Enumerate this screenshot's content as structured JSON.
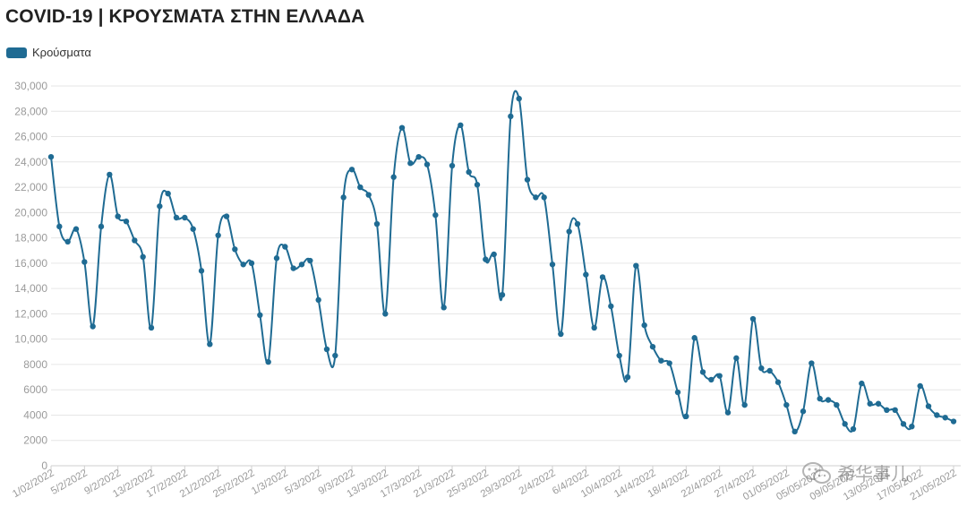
{
  "title": "COVID-19 | ΚΡΟΥΣΜΑΤΑ ΣΤΗΝ ΕΛΛΑΔΑ",
  "legend": {
    "label": "Κρούσματα",
    "color": "#1f6b93"
  },
  "watermark": {
    "text": "希华事儿",
    "icon": "wechat-icon"
  },
  "chart_data": {
    "type": "line",
    "title": "COVID-19 | ΚΡΟΥΣΜΑΤΑ ΣΤΗΝ ΕΛΛΑΔΑ",
    "xlabel": "",
    "ylabel": "",
    "ylim": [
      0,
      30000
    ],
    "yticks": [
      0,
      2000,
      4000,
      6000,
      8000,
      10000,
      12000,
      14000,
      16000,
      18000,
      20000,
      22000,
      24000,
      26000,
      28000,
      30000
    ],
    "ytick_labels": [
      "0",
      "2000",
      "4000",
      "6000",
      "8000",
      "10,000",
      "12,000",
      "14,000",
      "16,000",
      "18,000",
      "20,000",
      "22,000",
      "24,000",
      "26,000",
      "28,000",
      "30,000"
    ],
    "xtick_labels": [
      "1/02/2022",
      "5/2/2022",
      "9/2/2022",
      "13/2/2022",
      "17/2/2022",
      "21/2/2022",
      "25/2/2022",
      "1/3/2022",
      "5/3/2022",
      "9/3/2022",
      "13/3/2022",
      "17/3/2022",
      "21/3/2022",
      "25/3/2022",
      "29/3/2022",
      "2/4/2022",
      "6/4/2022",
      "10/4/2022",
      "14/4/2022",
      "18/4/2022",
      "22/4/2022",
      "27/4/2022",
      "01/05/2022",
      "05/05/2022",
      "09/05/2022",
      "13/05/2022",
      "17/05/2022",
      "21/05/2022"
    ],
    "grid": true,
    "legend_position": "top-left",
    "series": [
      {
        "name": "Κρούσματα",
        "color": "#1f6b93",
        "values": [
          24400,
          18900,
          17700,
          18700,
          16100,
          11000,
          18900,
          23000,
          19700,
          19300,
          17800,
          16500,
          10900,
          20500,
          21500,
          19600,
          19600,
          18700,
          15400,
          9600,
          18200,
          19700,
          17100,
          15900,
          16000,
          11900,
          8200,
          16400,
          17300,
          15600,
          15900,
          16200,
          13100,
          9200,
          8700,
          21200,
          23400,
          22000,
          21400,
          19100,
          12000,
          22800,
          26700,
          23900,
          24400,
          23800,
          19800,
          12500,
          23700,
          26900,
          23200,
          22200,
          16300,
          16700,
          13500,
          27600,
          29000,
          22600,
          21200,
          21200,
          15900,
          10400,
          18500,
          19100,
          15100,
          10900,
          14900,
          12600,
          8700,
          7000,
          15800,
          11100,
          9400,
          8300,
          8100,
          5800,
          3900,
          10100,
          7400,
          6800,
          7100,
          4200,
          8500,
          4800,
          11600,
          7700,
          7500,
          6600,
          4800,
          2700,
          4300,
          8100,
          5300,
          5200,
          4800,
          3300,
          2900,
          6500,
          4900,
          4900,
          4400,
          4400,
          3300,
          3100,
          6300,
          4700,
          4000,
          3800,
          3500
        ]
      }
    ]
  }
}
